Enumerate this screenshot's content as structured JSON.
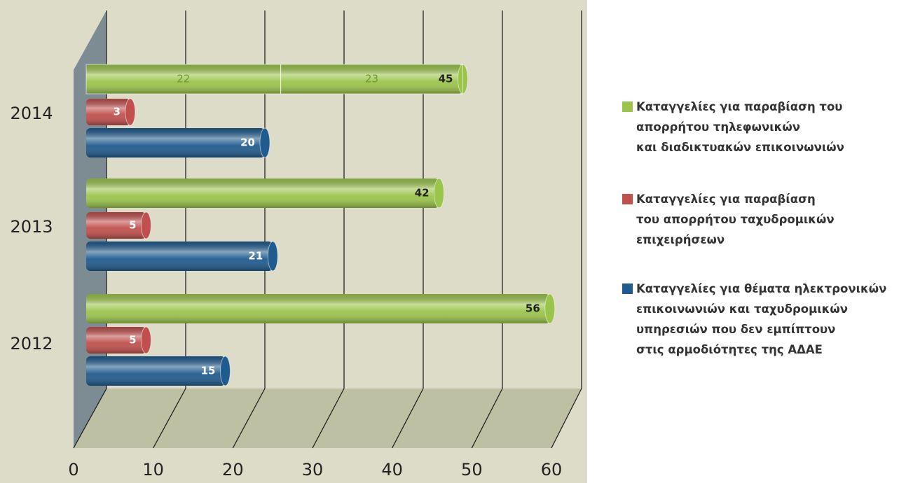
{
  "chart_data": {
    "type": "bar3d",
    "categories": [
      "2014",
      "2013",
      "2012"
    ],
    "series": [
      {
        "name": "Καταγγελίες για παραβίαση του\nαπορρήτου τηλεφωνικών\nκαι διαδικτυακών επικοινωνιών",
        "color": "#9bc44b",
        "values": [
          45,
          42,
          56
        ],
        "parts": [
          [
            22,
            23
          ],
          null,
          null
        ]
      },
      {
        "name": "Καταγγελίες για παραβίαση\nτου απορρήτου ταχυδρομικών\nεπιχειρήσεων",
        "color": "#c0504d",
        "values": [
          3,
          5,
          5
        ]
      },
      {
        "name": "Καταγγελίες για θέματα ηλεκτρονικών\nεπικοινωνιών και ταχυδρομικών\nυπηρεσιών που δεν εμπίπτουν\nστις αρμοδιότητες της ΑΔΑΕ",
        "color": "#1f5b8e",
        "values": [
          20,
          21,
          15
        ]
      }
    ],
    "xlim": [
      0,
      60
    ],
    "xticks": [
      0,
      10,
      20,
      30,
      40,
      50,
      60
    ],
    "grid": true,
    "legend": "right"
  }
}
